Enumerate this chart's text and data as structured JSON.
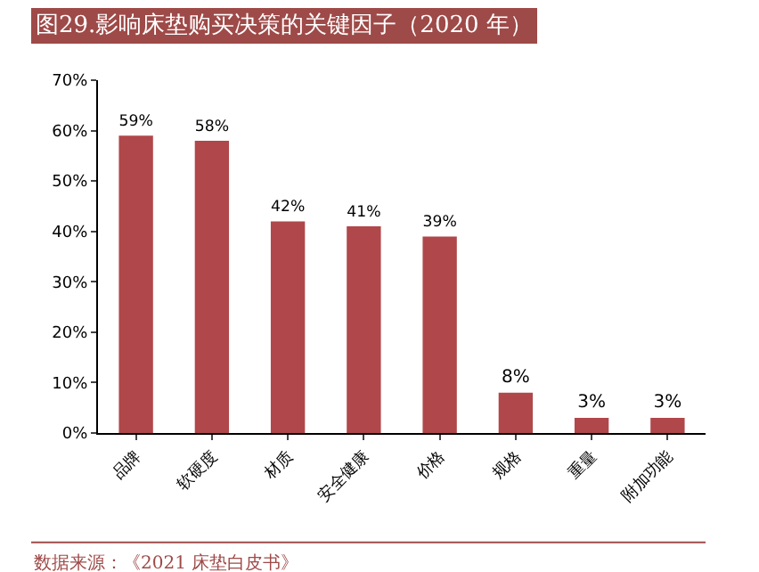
{
  "chart_data": {
    "type": "bar",
    "title": "图29.影响床垫购买决策的关键因子（2020 年）",
    "categories": [
      "品牌",
      "软硬度",
      "材质",
      "安全健康",
      "价格",
      "规格",
      "重量",
      "附加功能"
    ],
    "values": [
      59,
      58,
      42,
      41,
      39,
      8,
      3,
      3
    ],
    "value_labels": [
      "59%",
      "58%",
      "42%",
      "41%",
      "39%",
      "8%",
      "3%",
      "3%"
    ],
    "color": "#b0474a",
    "ylim": [
      0,
      70
    ],
    "yticks": [
      {
        "value": 0,
        "label": "0%"
      },
      {
        "value": 10,
        "label": "10%"
      },
      {
        "value": 20,
        "label": "20%"
      },
      {
        "value": 30,
        "label": "30%"
      },
      {
        "value": 40,
        "label": "40%"
      },
      {
        "value": 50,
        "label": "50%"
      },
      {
        "value": 60,
        "label": "60%"
      },
      {
        "value": 70,
        "label": "70%"
      }
    ],
    "legend": false,
    "annotations": [
      "数据来源：《2021 床垫白皮书》"
    ]
  }
}
